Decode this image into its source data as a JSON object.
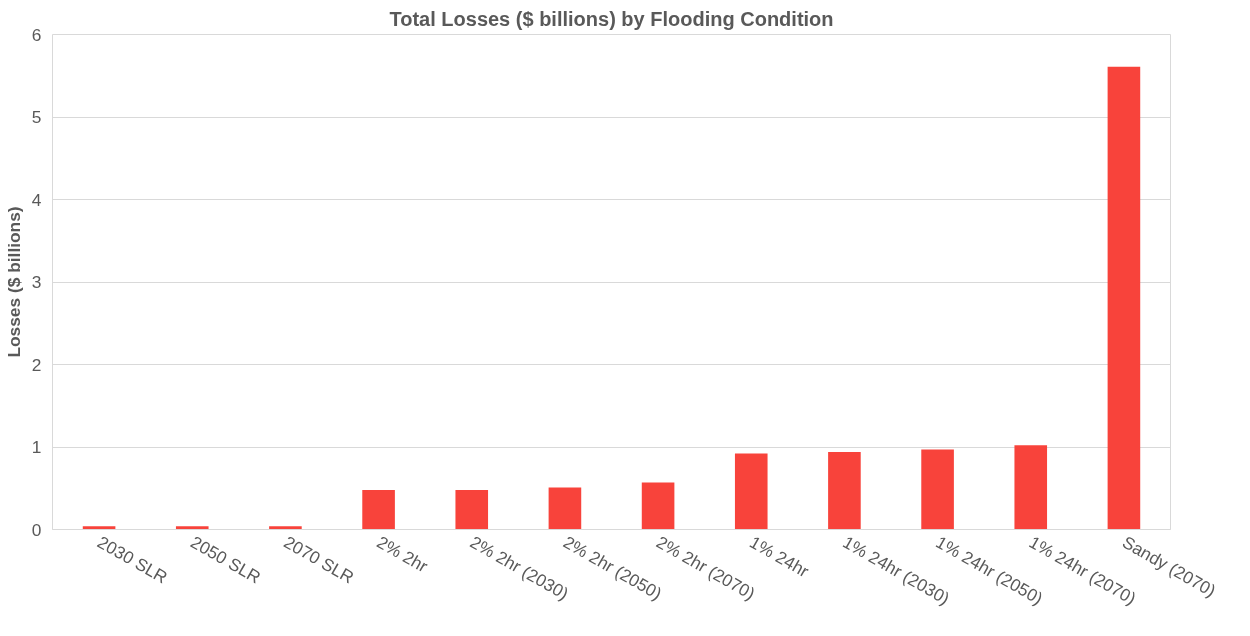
{
  "chart_data": {
    "type": "bar",
    "title": "Total Losses ($ billions) by Flooding Condition",
    "ylabel": "Losses ($ billions)",
    "categories": [
      "2030 SLR",
      "2050 SLR",
      "2070 SLR",
      "2% 2hr",
      "2% 2hr (2030)",
      "2% 2hr (2050)",
      "2% 2hr (2070)",
      "1% 24hr",
      "1% 24hr (2030)",
      "1% 24hr (2050)",
      "1% 24hr (2070)",
      "Sandy (2070)"
    ],
    "values": [
      0.04,
      0.04,
      0.04,
      0.48,
      0.48,
      0.51,
      0.57,
      0.92,
      0.94,
      0.97,
      1.02,
      5.61
    ],
    "color": "#f8433b",
    "ylim": [
      0,
      6
    ],
    "yticks": [
      0,
      1,
      2,
      3,
      4,
      5,
      6
    ],
    "grid": "y"
  }
}
